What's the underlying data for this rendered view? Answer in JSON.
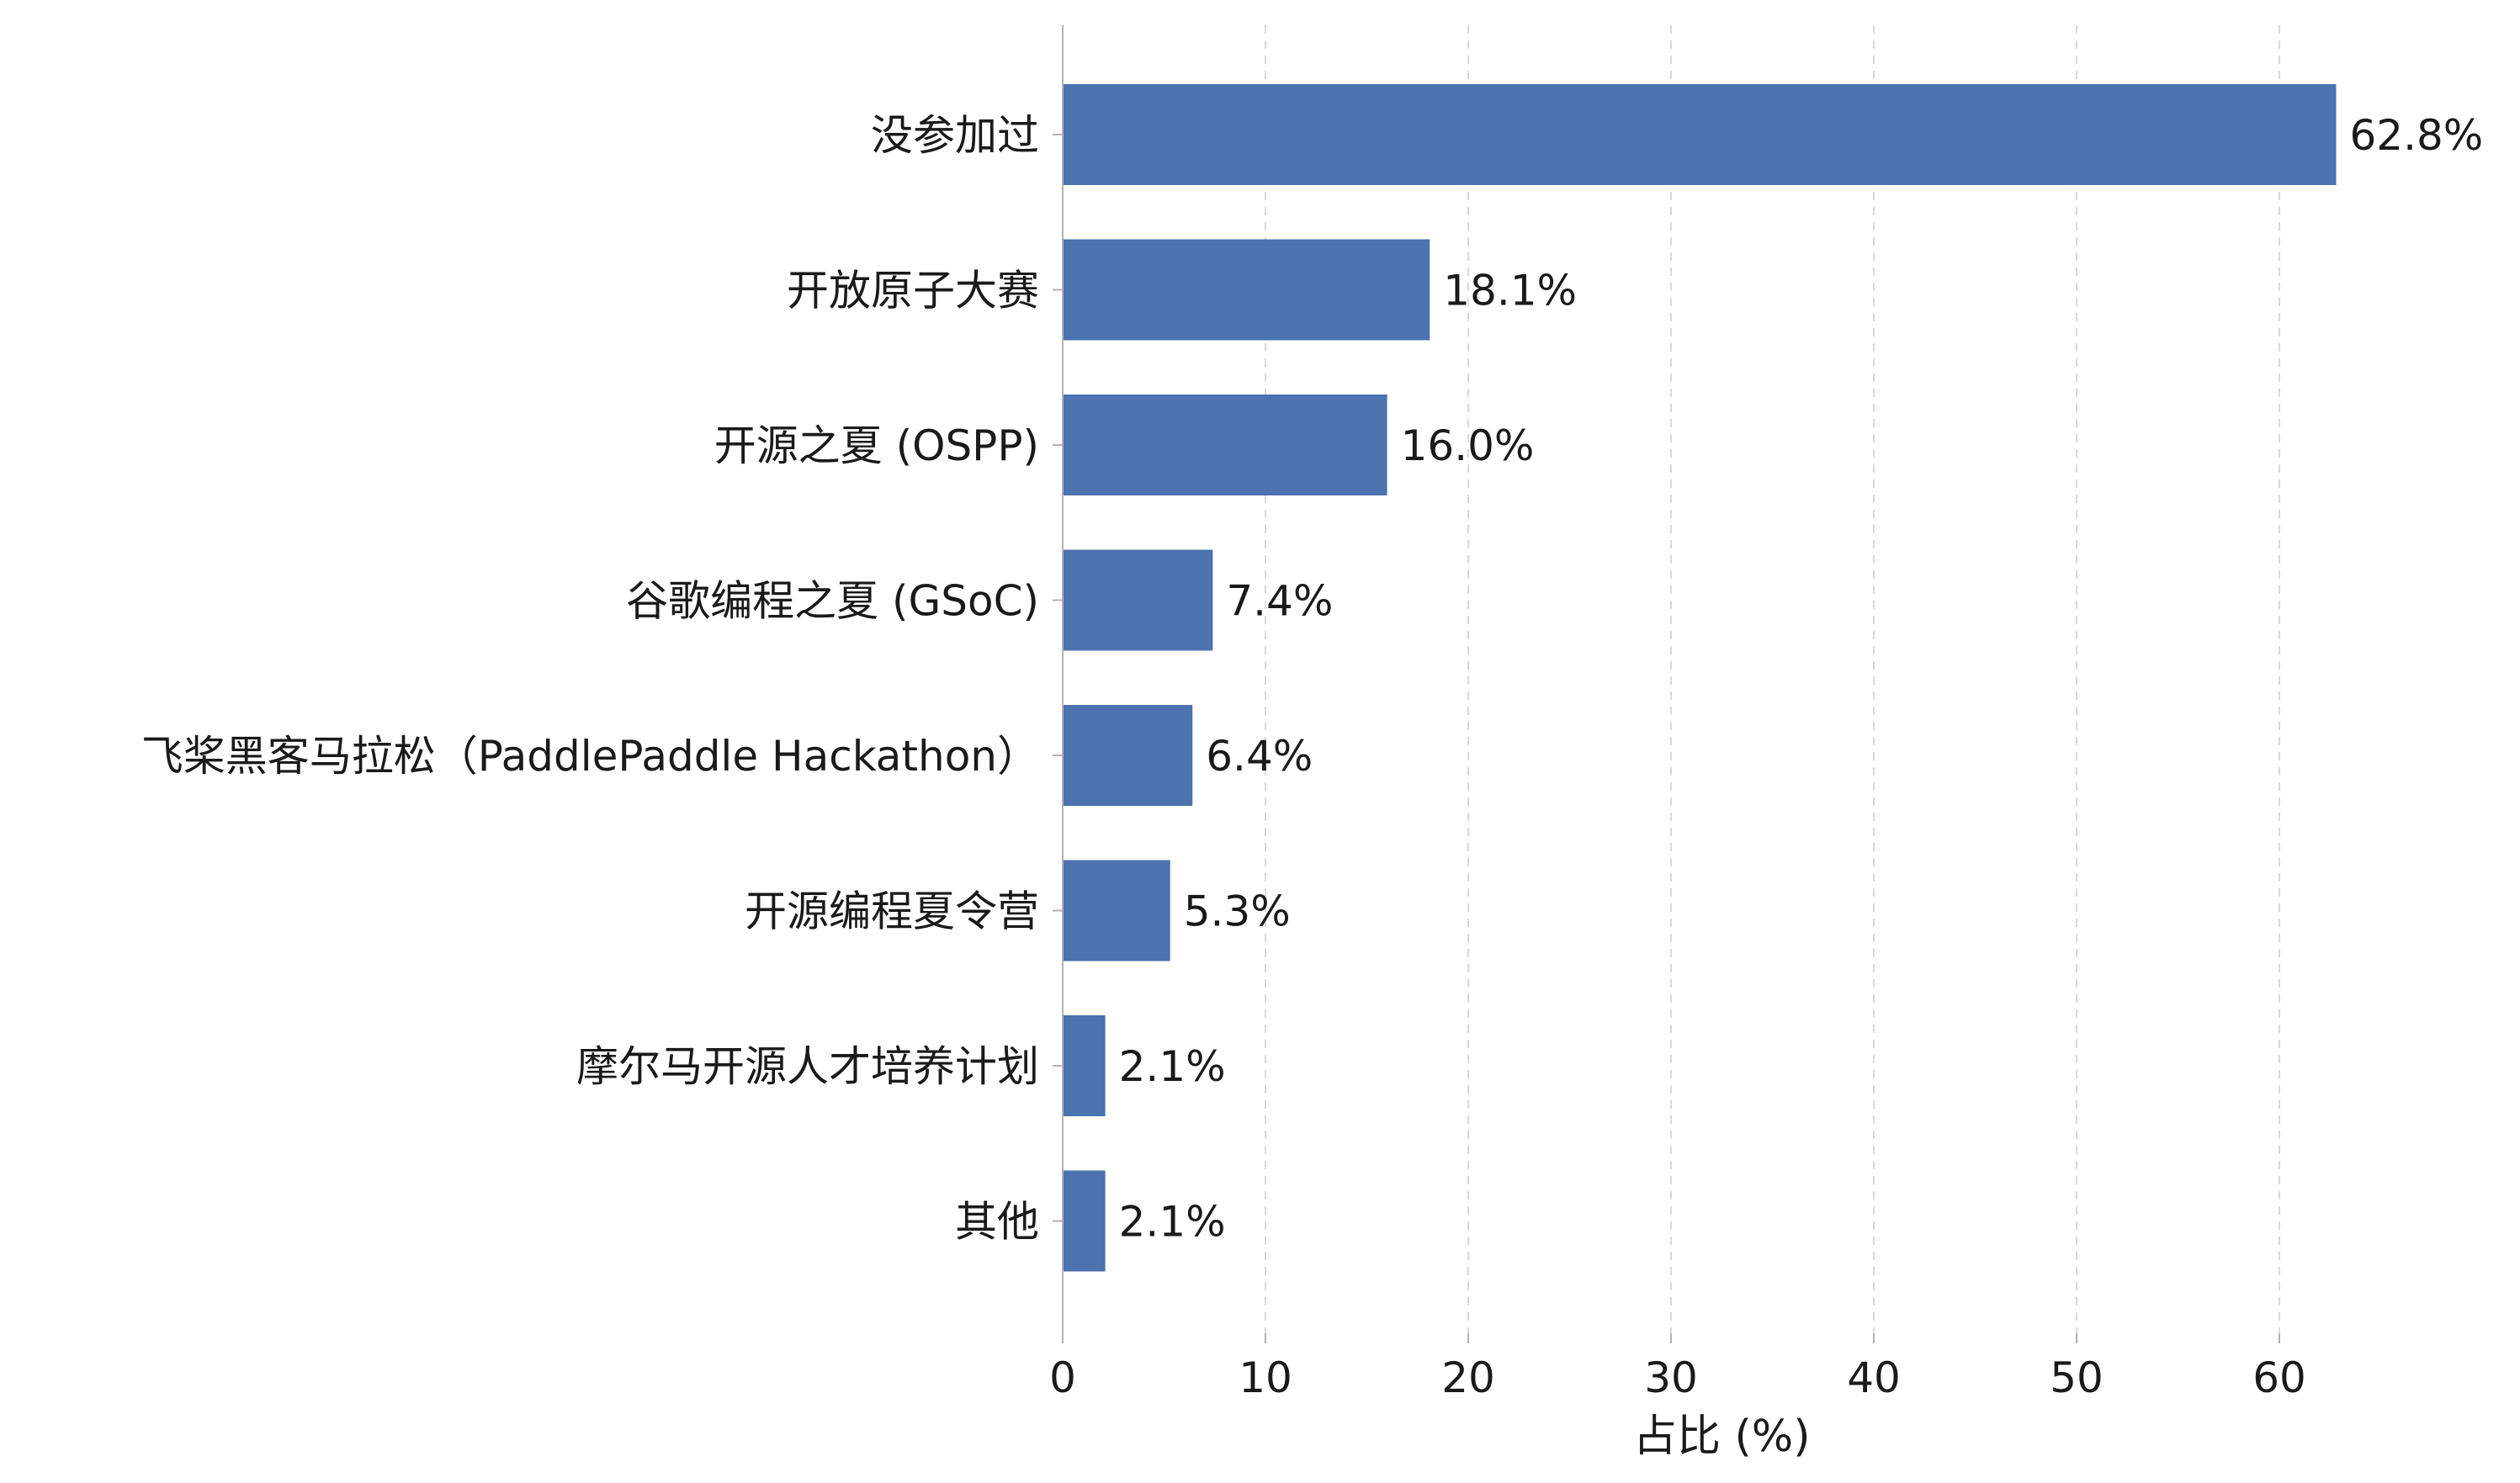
{
  "chart_data": {
    "type": "bar",
    "orientation": "horizontal",
    "categories": [
      "没参加过",
      "开放原子大赛",
      "开源之夏 (OSPP)",
      "谷歌编程之夏 (GSoC)",
      "飞桨黑客马拉松（PaddlePaddle Hackathon）",
      "开源编程夏令营",
      "摩尔马开源人才培养计划",
      "其他"
    ],
    "values": [
      62.8,
      18.1,
      16.0,
      7.4,
      6.4,
      5.3,
      2.1,
      2.1
    ],
    "value_labels": [
      "62.8%",
      "18.1%",
      "16.0%",
      "7.4%",
      "6.4%",
      "5.3%",
      "2.1%",
      "2.1%"
    ],
    "title": "",
    "xlabel": "占比 (%)",
    "ylabel": "",
    "xlim": [
      0,
      65
    ],
    "xticks": [
      0,
      10,
      20,
      30,
      40,
      50,
      60
    ],
    "tick_labels": [
      "0",
      "10",
      "20",
      "30",
      "40",
      "50",
      "60"
    ],
    "grid": "x-axis dashed",
    "legend": "none",
    "colors": {
      "bar": "#4c72b0",
      "grid": "#d9d9d9",
      "axis": "#b3b3b3",
      "text": "#1a1a1a"
    }
  }
}
